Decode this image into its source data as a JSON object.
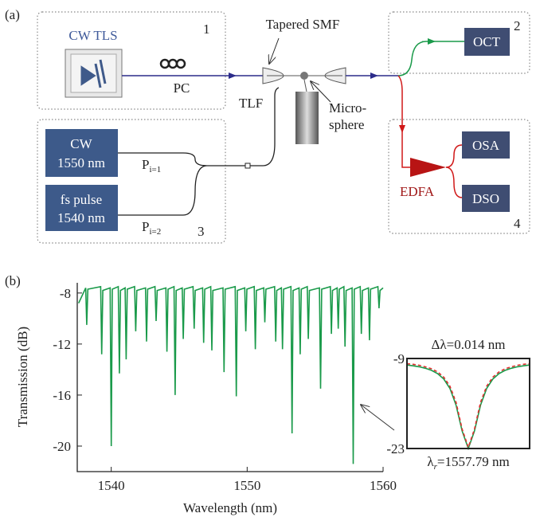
{
  "diagram": {
    "panel_label": "(a)",
    "tls": "CW TLS",
    "pc": "PC",
    "box1": "1",
    "tapered": "Tapered SMF",
    "tlf": "TLF",
    "micro": "Micro-",
    "sphere": "sphere",
    "oct": "OCT",
    "box2": "2",
    "cw": "CW",
    "cw_wl": "1550 nm",
    "fs": "fs pulse",
    "fs_wl": "1540 nm",
    "p1": {
      "base": "P",
      "sub": "i=1"
    },
    "p2": {
      "base": "P",
      "sub": "i=2"
    },
    "box3": "3",
    "osa": "OSA",
    "dso": "DSO",
    "edfa": "EDFA",
    "box4": "4"
  },
  "chart_data": [
    {
      "type": "line",
      "panel_label": "(b)",
      "xlabel": "Wavelength (nm)",
      "ylabel": "Transmission (dB)",
      "color": "#1a9a4a",
      "xlim": [
        1537.5,
        1560
      ],
      "xticks": [
        1540,
        1550,
        1560
      ],
      "ylim": [
        -22,
        -7.2
      ],
      "yticks": [
        -8,
        -12,
        -16,
        -20
      ],
      "x": [
        1537.6,
        1538.12,
        1538.2,
        1538.28,
        1539.22,
        1539.3,
        1539.38,
        1539.92,
        1540.0,
        1540.08,
        1540.52,
        1540.6,
        1540.68,
        1541.02,
        1541.1,
        1541.18,
        1541.72,
        1541.8,
        1541.88,
        1542.52,
        1542.6,
        1542.68,
        1543.22,
        1543.3,
        1543.38,
        1544.02,
        1544.1,
        1544.18,
        1544.62,
        1544.7,
        1544.78,
        1545.22,
        1545.3,
        1545.38,
        1546.02,
        1546.1,
        1546.18,
        1546.72,
        1546.8,
        1546.88,
        1547.32,
        1547.4,
        1547.48,
        1548.22,
        1548.3,
        1548.38,
        1549.12,
        1549.2,
        1549.28,
        1549.82,
        1549.9,
        1549.98,
        1550.52,
        1550.6,
        1550.68,
        1551.22,
        1551.3,
        1551.38,
        1552.02,
        1552.1,
        1552.18,
        1552.52,
        1552.6,
        1552.68,
        1553.22,
        1553.3,
        1553.38,
        1553.82,
        1553.9,
        1553.98,
        1554.42,
        1554.5,
        1554.58,
        1555.32,
        1555.4,
        1555.48,
        1556.12,
        1556.2,
        1556.28,
        1556.62,
        1556.7,
        1556.78,
        1557.12,
        1557.2,
        1557.28,
        1557.72,
        1557.8,
        1557.88,
        1558.32,
        1558.4,
        1558.48,
        1558.92,
        1559.0,
        1559.08,
        1559.62,
        1559.7,
        1559.78,
        1560
      ],
      "values": [
        -8.8,
        -7.6,
        -10.5,
        -7.7,
        -7.5,
        -12.8,
        -7.8,
        -7.6,
        -20.0,
        -7.7,
        -7.5,
        -14.3,
        -7.8,
        -7.6,
        -13.2,
        -7.7,
        -7.5,
        -11.0,
        -7.8,
        -7.6,
        -11.8,
        -7.7,
        -7.5,
        -10.2,
        -7.8,
        -7.6,
        -12.6,
        -7.7,
        -7.5,
        -16.0,
        -7.8,
        -7.6,
        -11.6,
        -7.7,
        -7.5,
        -10.8,
        -7.8,
        -7.6,
        -11.9,
        -7.7,
        -7.5,
        -12.5,
        -7.8,
        -7.6,
        -14.2,
        -7.7,
        -7.5,
        -16.1,
        -7.8,
        -7.6,
        -11.0,
        -7.7,
        -7.5,
        -12.4,
        -7.8,
        -7.6,
        -10.3,
        -7.7,
        -7.5,
        -11.8,
        -7.8,
        -7.6,
        -12.4,
        -7.7,
        -7.5,
        -19.0,
        -7.8,
        -7.6,
        -12.8,
        -7.7,
        -7.5,
        -11.6,
        -7.8,
        -7.6,
        -15.5,
        -7.7,
        -7.5,
        -11.2,
        -7.8,
        -7.6,
        -10.8,
        -7.7,
        -7.5,
        -12.2,
        -7.8,
        -7.6,
        -21.4,
        -7.7,
        -7.5,
        -11.2,
        -7.8,
        -7.6,
        -11.7,
        -7.7,
        -7.5,
        -9.2,
        -7.8,
        -7.6
      ]
    },
    {
      "type": "line",
      "annotation_top": "Δλ=0.014 nm",
      "annotation_bottom": {
        "base": "λ",
        "sub": "r",
        "rest": "=1557.79 nm"
      },
      "ylim": [
        -23,
        -9
      ],
      "yticks": [
        -9,
        -23
      ],
      "series": [
        {
          "color": "#1a9a4a",
          "values": [
            -10.02,
            -10.14,
            -10.29,
            -10.52,
            -10.85,
            -11.36,
            -12.2,
            -13.65,
            -16.25,
            -20.3,
            -23.0,
            -20.3,
            -16.25,
            -13.65,
            -12.2,
            -11.36,
            -10.85,
            -10.52,
            -10.29,
            -10.14,
            -10.02
          ]
        },
        {
          "color": "#e03030",
          "dashed": true,
          "values": [
            -9.8,
            -9.9,
            -10.05,
            -10.3,
            -10.6,
            -11.1,
            -11.9,
            -13.3,
            -15.8,
            -20.0,
            -22.8,
            -20.0,
            -15.8,
            -13.3,
            -11.9,
            -11.1,
            -10.6,
            -10.3,
            -10.05,
            -9.9,
            -9.8
          ]
        }
      ]
    }
  ]
}
